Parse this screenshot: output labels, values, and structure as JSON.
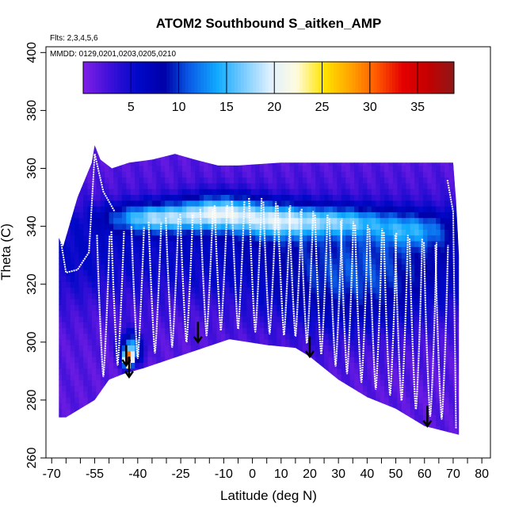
{
  "chart_data": {
    "type": "heatmap",
    "title": "ATOM2 Southbound S_aitken_AMP",
    "flights_note": "Flts: 2,3,4,5,6",
    "dates_note": "MMDD: 0129,0201,0203,0205,0210",
    "xlabel": "Latitude (deg N)",
    "ylabel": "Theta (C)",
    "xlim": [
      -72,
      83
    ],
    "ylim": [
      260,
      402
    ],
    "x_ticks_labeled": [
      -70,
      -55,
      -40,
      -25,
      -10,
      0,
      10,
      20,
      30,
      40,
      50,
      60,
      70,
      80
    ],
    "x_ticks_minor": [
      -65,
      -60,
      -50,
      -45,
      -35,
      -30,
      -20,
      -15,
      -5,
      5,
      15,
      25,
      35,
      45,
      55,
      65,
      75
    ],
    "y_ticks": [
      260,
      280,
      300,
      320,
      340,
      360,
      380,
      400
    ],
    "colorbar": {
      "range": [
        0,
        38.8
      ],
      "ticks": [
        5,
        10,
        15,
        20,
        25,
        30,
        35
      ],
      "colors": [
        "#7b1fe6",
        "#3b0fd8",
        "#0008c8",
        "#0000a8",
        "#0a5fe8",
        "#10aaff",
        "#78ccff",
        "#dff0ff",
        "#fffbe0",
        "#ffe500",
        "#ffa600",
        "#ff5a00",
        "#e60000",
        "#c20000",
        "#8b1a1a"
      ]
    },
    "legend_position": "top",
    "grid": false,
    "upper_boundary": [
      [
        -67.5,
        336
      ],
      [
        -66,
        333
      ],
      [
        -61,
        350
      ],
      [
        -56,
        362
      ],
      [
        -55,
        368
      ],
      [
        -53,
        363
      ],
      [
        -49,
        360
      ],
      [
        -43,
        362
      ],
      [
        -35,
        363
      ],
      [
        -27,
        365
      ],
      [
        -20,
        363
      ],
      [
        -12,
        361
      ],
      [
        -5,
        361
      ],
      [
        10,
        362
      ],
      [
        25,
        362
      ],
      [
        40,
        362
      ],
      [
        55,
        362
      ],
      [
        66,
        362
      ],
      [
        70,
        362
      ],
      [
        71,
        349
      ],
      [
        72,
        330
      ],
      [
        72,
        268
      ]
    ],
    "lower_boundary": [
      [
        -67.5,
        274
      ],
      [
        -65,
        274
      ],
      [
        -55,
        280
      ],
      [
        -50,
        287
      ],
      [
        -45,
        289
      ],
      [
        -38,
        291
      ],
      [
        -20,
        297
      ],
      [
        -8,
        301
      ],
      [
        5,
        299
      ],
      [
        15,
        298
      ],
      [
        20,
        295
      ],
      [
        30,
        287
      ],
      [
        40,
        281
      ],
      [
        50,
        277
      ],
      [
        60,
        271
      ],
      [
        72,
        268
      ]
    ],
    "field": {
      "background_level": 1.5,
      "blobs": [
        {
          "lat": -44,
          "theta": 293,
          "level": 35,
          "width_lat": 1.5,
          "width_theta": 2.5
        },
        {
          "lat": -43,
          "theta": 297,
          "level": 13,
          "width_lat": 4,
          "width_theta": 5
        },
        {
          "lat": -35,
          "theta": 342,
          "level": 13,
          "width_lat": 16,
          "width_theta": 5
        },
        {
          "lat": -12,
          "theta": 344,
          "level": 14,
          "width_lat": 14,
          "width_theta": 6
        },
        {
          "lat": 8,
          "theta": 341,
          "level": 12,
          "width_lat": 14,
          "width_theta": 6
        },
        {
          "lat": 30,
          "theta": 341,
          "level": 10,
          "width_lat": 16,
          "width_theta": 5
        },
        {
          "lat": 55,
          "theta": 338,
          "level": 8,
          "width_lat": 14,
          "width_theta": 6
        },
        {
          "lat": 35,
          "theta": 319,
          "level": 6,
          "width_lat": 30,
          "width_theta": 18
        }
      ]
    },
    "flight_paths_color": "#ffffff",
    "arrows": [
      {
        "lat": -44,
        "theta": 295
      },
      {
        "lat": -43,
        "theta": 291
      },
      {
        "lat": -19,
        "theta": 303
      },
      {
        "lat": 20,
        "theta": 298
      },
      {
        "lat": 61,
        "theta": 274
      }
    ]
  }
}
